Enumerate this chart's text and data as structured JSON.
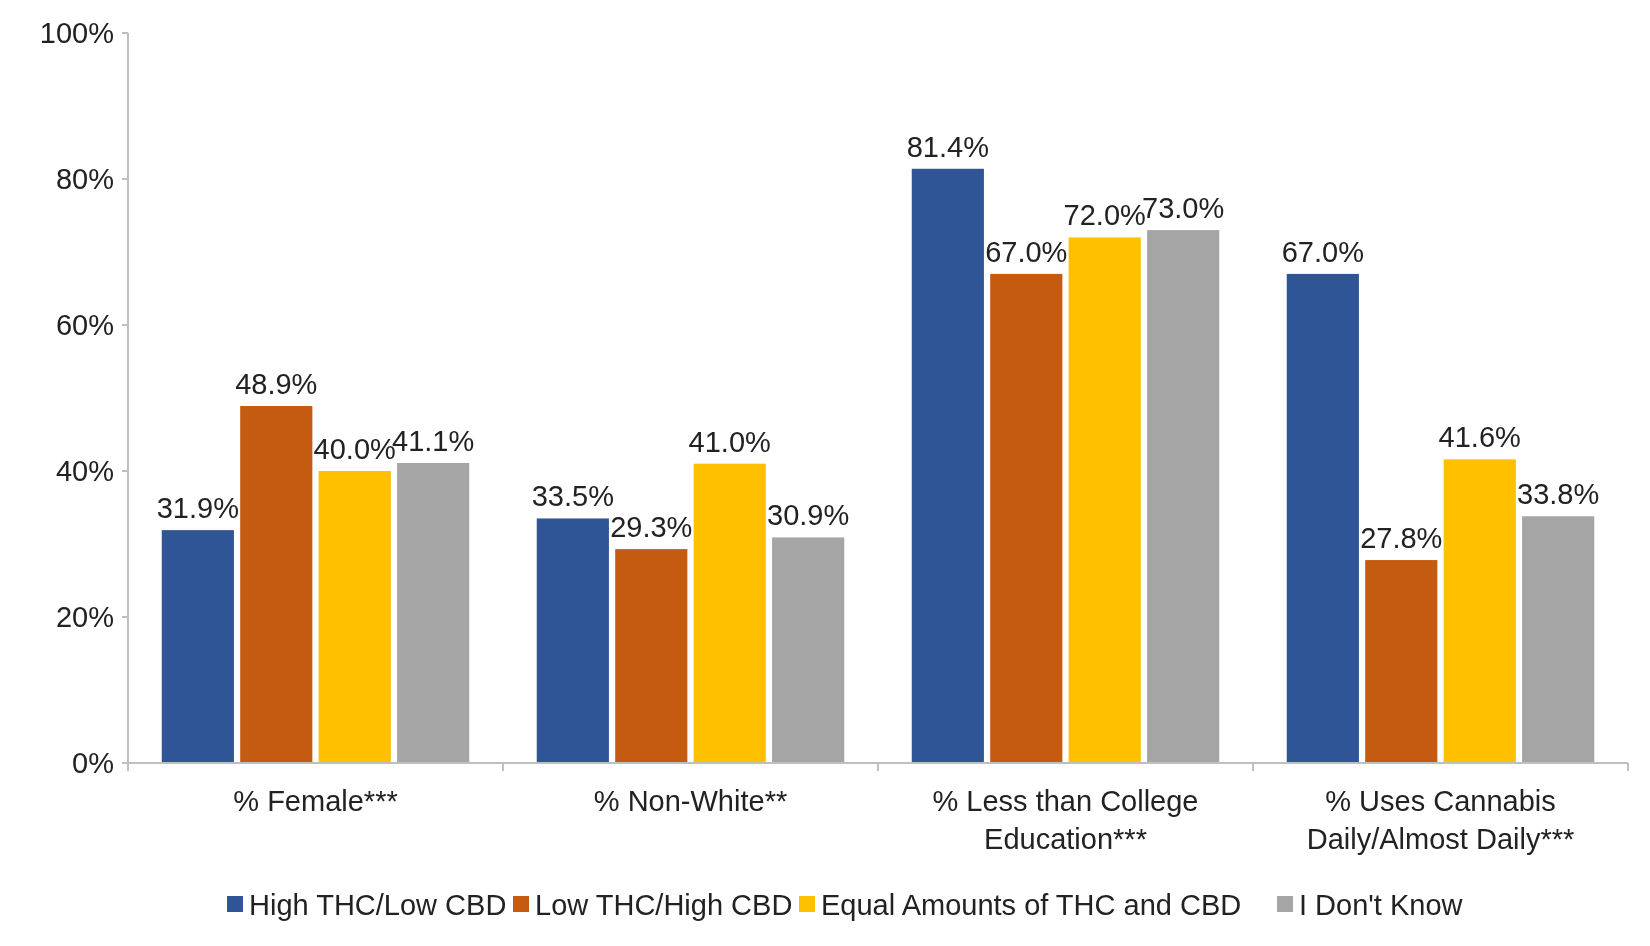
{
  "chart_data": {
    "type": "bar",
    "categories": [
      "% Female***",
      "% Non-White**",
      "% Less than College Education***",
      "% Uses Cannabis Daily/Almost Daily***"
    ],
    "series": [
      {
        "name": "High THC/Low CBD",
        "color": "#2f5597",
        "values": [
          31.9,
          33.5,
          81.4,
          67.0
        ],
        "value_labels": [
          "31.9%",
          "33.5%",
          "81.4%",
          "67.0%"
        ]
      },
      {
        "name": "Low THC/High CBD",
        "color": "#c55a11",
        "values": [
          48.9,
          29.3,
          67.0,
          27.8
        ],
        "value_labels": [
          "48.9%",
          "29.3%",
          "67.0%",
          "27.8%"
        ]
      },
      {
        "name": "Equal Amounts of THC and CBD",
        "color": "#ffc000",
        "values": [
          40.0,
          41.0,
          72.0,
          41.6
        ],
        "value_labels": [
          "40.0%",
          "41.0%",
          "72.0%",
          "41.6%"
        ]
      },
      {
        "name": "I Don't Know",
        "color": "#a5a5a5",
        "values": [
          41.1,
          30.9,
          73.0,
          33.8
        ],
        "value_labels": [
          "41.1%",
          "30.9%",
          "73.0%",
          "33.8%"
        ]
      }
    ],
    "ylim": [
      0,
      100
    ],
    "yticks": [
      {
        "value": 0,
        "label": "0%"
      },
      {
        "value": 20,
        "label": "20%"
      },
      {
        "value": 40,
        "label": "40%"
      },
      {
        "value": 60,
        "label": "60%"
      },
      {
        "value": 80,
        "label": "80%"
      },
      {
        "value": 100,
        "label": "100%"
      }
    ],
    "legend": "bottom"
  }
}
